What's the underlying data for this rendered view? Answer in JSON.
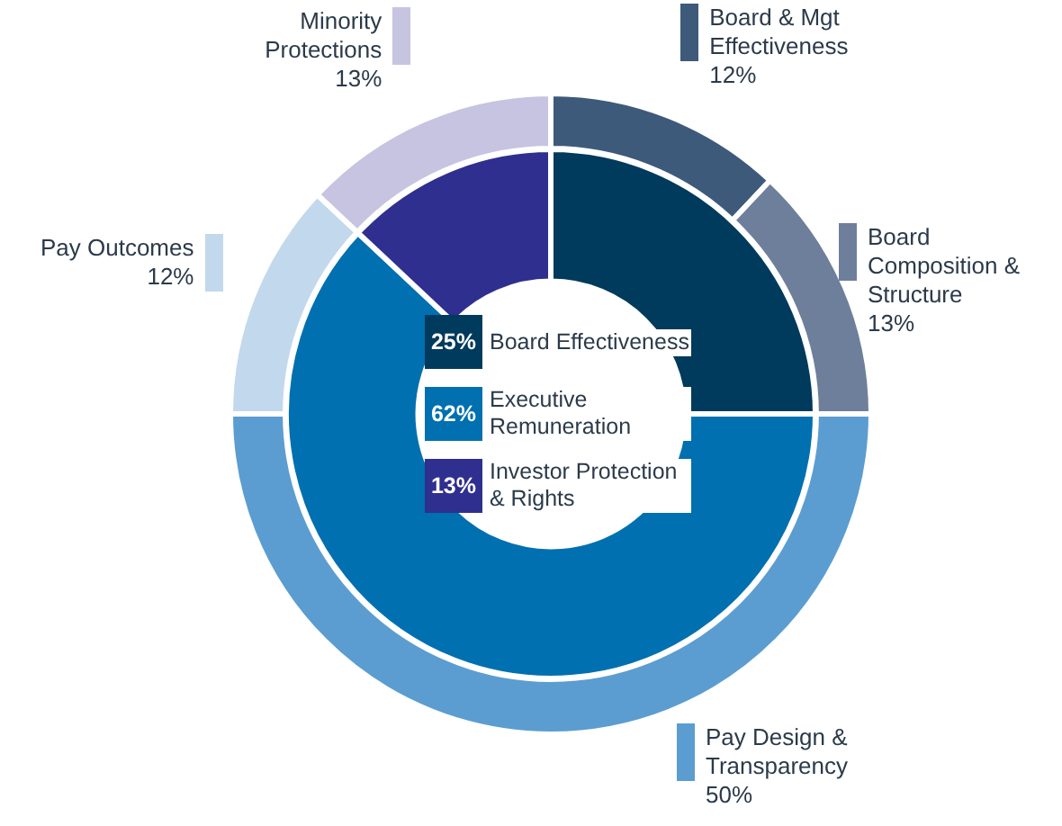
{
  "chart_data": [
    {
      "type": "donut",
      "categories": [
        "Board Effectiveness",
        "Executive Remuneration",
        "Investor Protection & Rights"
      ],
      "values": [
        25,
        62,
        13
      ],
      "colors": [
        "#003a5c",
        "#0070b0",
        "#2e2f8e"
      ],
      "value_labels": [
        "25%",
        "62%",
        "13%"
      ],
      "legend": "center"
    },
    {
      "type": "donut",
      "categories": [
        "Board & Mgt Effectiveness",
        "Board Composition & Structure",
        "Pay Design & Transparency",
        "Pay Outcomes",
        "Minority Protections"
      ],
      "values": [
        12,
        13,
        50,
        12,
        13
      ],
      "colors": [
        "#3d5a7b",
        "#6e7f9b",
        "#5b9dd0",
        "#c2d8ec",
        "#c6c4e1"
      ],
      "value_labels": [
        "12%",
        "13%",
        "50%",
        "12%",
        "13%"
      ]
    }
  ]
}
